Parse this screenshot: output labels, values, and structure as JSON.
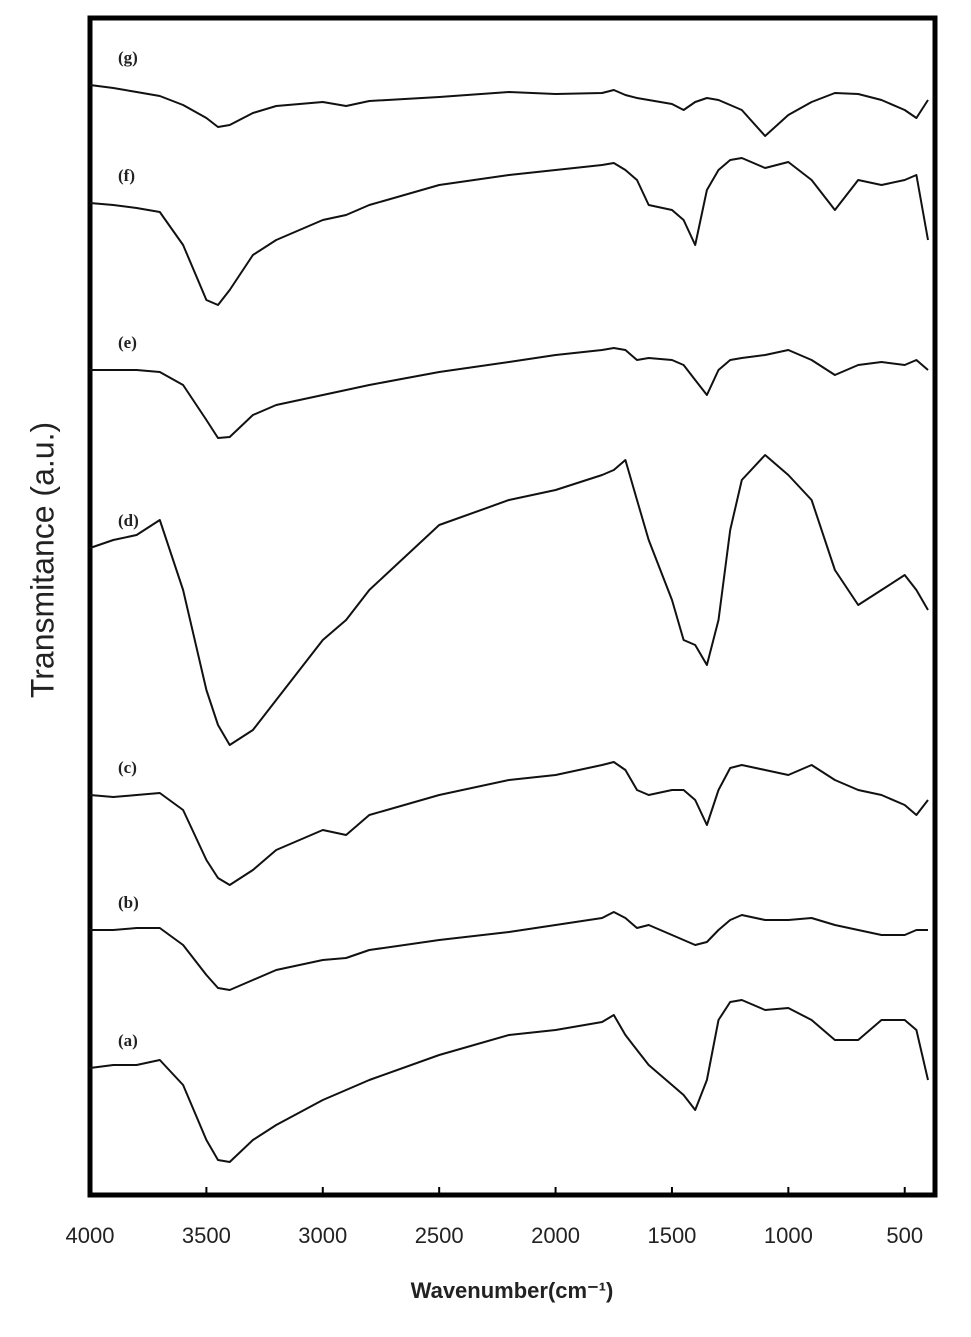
{
  "chart_data": {
    "type": "line",
    "ylabel": "Transmitance (a.u.)",
    "xlabel": "Wavenumber(cm⁻¹)",
    "x": [
      4000,
      3900,
      3800,
      3700,
      3600,
      3500,
      3450,
      3400,
      3300,
      3200,
      3000,
      2900,
      2800,
      2500,
      2200,
      2000,
      1800,
      1750,
      1700,
      1650,
      1600,
      1500,
      1450,
      1400,
      1350,
      1300,
      1250,
      1200,
      1100,
      1000,
      900,
      800,
      700,
      600,
      500,
      450,
      400
    ],
    "xlim": [
      4000,
      370
    ],
    "xticks": [
      4000,
      3500,
      3000,
      2500,
      2000,
      1500,
      1000,
      500
    ],
    "ylim": [
      0,
      117.7
    ],
    "series": [
      {
        "name": "(g)",
        "color": "#111111",
        "values": [
          111.0,
          110.7,
          110.3,
          109.9,
          109.0,
          107.7,
          106.8,
          107.0,
          108.2,
          108.9,
          109.3,
          108.9,
          109.4,
          109.8,
          110.3,
          110.1,
          110.2,
          110.5,
          110.0,
          109.7,
          109.5,
          109.1,
          108.5,
          109.3,
          109.7,
          109.5,
          109.0,
          108.5,
          105.9,
          108.0,
          109.3,
          110.2,
          110.1,
          109.5,
          108.5,
          107.7,
          109.5
        ]
      },
      {
        "name": "(f)",
        "color": "#111111",
        "values": [
          99.2,
          99.0,
          98.7,
          98.3,
          95.0,
          89.5,
          89.0,
          90.5,
          94.0,
          95.5,
          97.5,
          98.0,
          99.0,
          101.0,
          102.0,
          102.5,
          103.0,
          103.2,
          102.5,
          101.5,
          99.0,
          98.5,
          97.5,
          95.0,
          100.5,
          102.5,
          103.5,
          103.7,
          102.7,
          103.3,
          101.5,
          98.5,
          101.5,
          101.0,
          101.5,
          102.0,
          95.5
        ]
      },
      {
        "name": "(e)",
        "color": "#111111",
        "values": [
          82.5,
          82.5,
          82.5,
          82.3,
          81.0,
          77.5,
          75.7,
          75.8,
          78.0,
          79.0,
          80.0,
          80.5,
          81.0,
          82.3,
          83.3,
          84.0,
          84.5,
          84.7,
          84.5,
          83.5,
          83.7,
          83.5,
          83.0,
          81.5,
          80.0,
          82.5,
          83.5,
          83.7,
          84.0,
          84.5,
          83.5,
          82.0,
          83.0,
          83.3,
          83.0,
          83.5,
          82.5
        ]
      },
      {
        "name": "(d)",
        "color": "#111111",
        "values": [
          64.7,
          65.5,
          66.0,
          67.5,
          60.5,
          50.5,
          47.0,
          45.0,
          46.5,
          49.5,
          55.5,
          57.5,
          60.5,
          67.0,
          69.5,
          70.5,
          72.0,
          72.5,
          73.5,
          69.5,
          65.5,
          59.5,
          55.5,
          55.0,
          53.0,
          57.5,
          66.5,
          71.5,
          74.0,
          72.0,
          69.5,
          62.5,
          59.0,
          60.5,
          62.0,
          60.5,
          58.5
        ]
      },
      {
        "name": "(c)",
        "color": "#111111",
        "values": [
          40.0,
          39.8,
          40.0,
          40.2,
          38.5,
          33.5,
          31.7,
          31.0,
          32.5,
          34.5,
          36.5,
          36.0,
          38.0,
          40.0,
          41.5,
          42.0,
          43.0,
          43.3,
          42.5,
          40.5,
          40.0,
          40.5,
          40.5,
          39.5,
          37.0,
          40.5,
          42.7,
          43.0,
          42.5,
          42.0,
          43.0,
          41.5,
          40.5,
          40.0,
          39.0,
          38.0,
          39.5
        ]
      },
      {
        "name": "(b)",
        "color": "#111111",
        "values": [
          26.5,
          26.5,
          26.7,
          26.7,
          25.0,
          22.0,
          20.7,
          20.5,
          21.5,
          22.5,
          23.5,
          23.7,
          24.5,
          25.5,
          26.3,
          27.0,
          27.7,
          28.3,
          27.7,
          26.7,
          27.0,
          26.0,
          25.5,
          25.0,
          25.3,
          26.5,
          27.5,
          28.0,
          27.5,
          27.5,
          27.7,
          27.0,
          26.5,
          26.0,
          26.0,
          26.5,
          26.5
        ]
      },
      {
        "name": "(a)",
        "color": "#111111",
        "values": [
          12.7,
          13.0,
          13.0,
          13.5,
          11.0,
          5.5,
          3.5,
          3.3,
          5.5,
          7.0,
          9.5,
          10.5,
          11.5,
          14.0,
          16.0,
          16.5,
          17.3,
          18.0,
          16.0,
          14.5,
          13.0,
          11.0,
          10.0,
          8.5,
          11.5,
          17.5,
          19.3,
          19.5,
          18.5,
          18.7,
          17.5,
          15.5,
          15.5,
          17.5,
          17.5,
          16.5,
          11.5
        ]
      }
    ]
  }
}
